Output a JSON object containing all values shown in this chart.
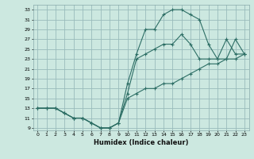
{
  "xlabel": "Humidex (Indice chaleur)",
  "bg_color": "#cce8e0",
  "grid_color": "#99bbbb",
  "line_color": "#2d6e65",
  "xlim": [
    -0.5,
    23.5
  ],
  "ylim": [
    8.5,
    34
  ],
  "xticks": [
    0,
    1,
    2,
    3,
    4,
    5,
    6,
    7,
    8,
    9,
    10,
    11,
    12,
    13,
    14,
    15,
    16,
    17,
    18,
    19,
    20,
    21,
    22,
    23
  ],
  "yticks": [
    9,
    11,
    13,
    15,
    17,
    19,
    21,
    23,
    25,
    27,
    29,
    31,
    33
  ],
  "line1_x": [
    0,
    1,
    2,
    3,
    4,
    5,
    6,
    7,
    8,
    9,
    10,
    11,
    12,
    13,
    14,
    15,
    16,
    17,
    18,
    19,
    20,
    21,
    22,
    23
  ],
  "line1_y": [
    13,
    13,
    13,
    12,
    11,
    11,
    10,
    9,
    9,
    10,
    18,
    24,
    29,
    29,
    32,
    33,
    33,
    32,
    31,
    26,
    23,
    23,
    27,
    24
  ],
  "line2_x": [
    0,
    1,
    2,
    3,
    4,
    5,
    6,
    7,
    8,
    9,
    10,
    11,
    12,
    13,
    14,
    15,
    16,
    17,
    18,
    19,
    20,
    21,
    22,
    23
  ],
  "line2_y": [
    13,
    13,
    13,
    12,
    11,
    11,
    10,
    9,
    9,
    10,
    16,
    23,
    24,
    25,
    26,
    26,
    28,
    26,
    23,
    23,
    23,
    27,
    24,
    24
  ],
  "line3_x": [
    0,
    1,
    2,
    3,
    4,
    5,
    6,
    7,
    8,
    9,
    10,
    11,
    12,
    13,
    14,
    15,
    16,
    17,
    18,
    19,
    20,
    21,
    22,
    23
  ],
  "line3_y": [
    13,
    13,
    13,
    12,
    11,
    11,
    10,
    9,
    9,
    10,
    15,
    16,
    17,
    17,
    18,
    18,
    19,
    20,
    21,
    22,
    22,
    23,
    23,
    24
  ]
}
